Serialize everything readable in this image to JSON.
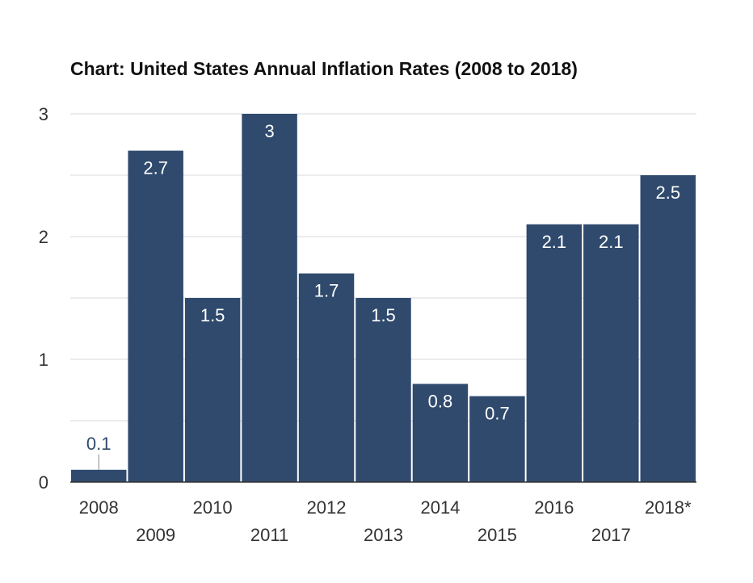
{
  "chart_data": {
    "type": "bar",
    "title": "Chart: United States Annual Inflation Rates (2008 to 2018)",
    "xlabel": "",
    "ylabel": "",
    "categories": [
      "2008",
      "2009",
      "2010",
      "2011",
      "2012",
      "2013",
      "2014",
      "2015",
      "2016",
      "2017",
      "2018*"
    ],
    "values": [
      0.1,
      2.7,
      1.5,
      3,
      1.7,
      1.5,
      0.8,
      0.7,
      2.1,
      2.1,
      2.5
    ],
    "data_labels": [
      "0.1",
      "2.7",
      "1.5",
      "3",
      "1.7",
      "1.5",
      "0.8",
      "0.7",
      "2.1",
      "2.1",
      "2.5"
    ],
    "ylim": [
      0,
      3
    ],
    "yticks": [
      "0",
      "1",
      "2",
      "3"
    ],
    "grid": true,
    "legend": "none",
    "colors": {
      "bar": "#2f4a6d",
      "grid": "#d9d9d9",
      "axis": "#333333"
    }
  }
}
